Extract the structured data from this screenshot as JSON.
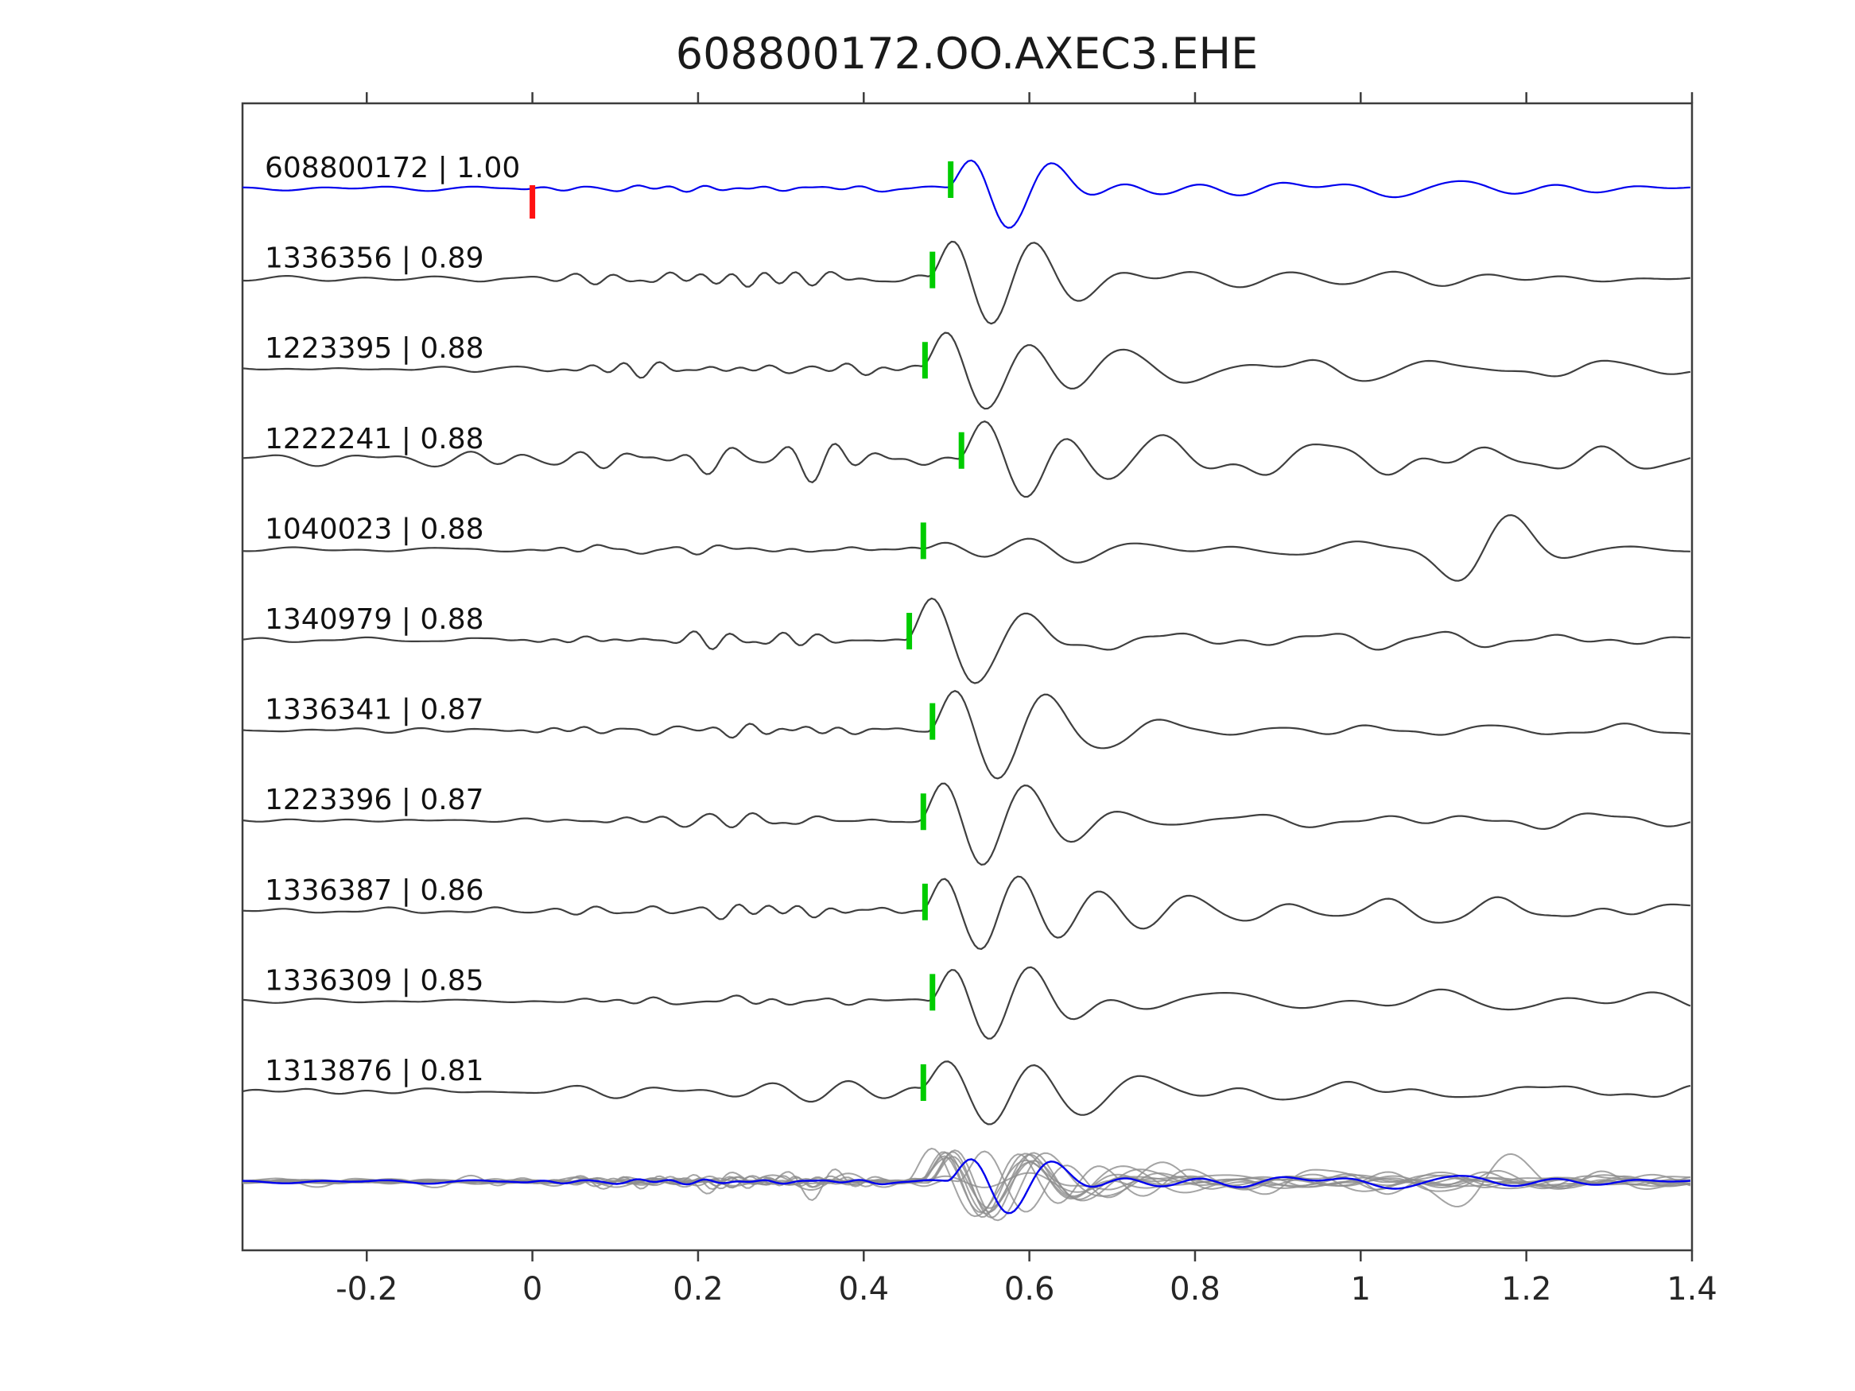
{
  "chart_data": {
    "type": "line",
    "title": "608800172.OO.AXEC3.EHE",
    "xlabel": "",
    "ylabel": "",
    "grid": false,
    "legend": "none",
    "xlim": [
      -0.35,
      1.4
    ],
    "x_ticks": [
      -0.2,
      0,
      0.2,
      0.4,
      0.6,
      0.8,
      1,
      1.2,
      1.4
    ],
    "x_tick_labels": [
      "-0.2",
      "0",
      "0.2",
      "0.4",
      "0.6",
      "0.8",
      "1",
      "1.2",
      "1.4"
    ],
    "colors": {
      "reference_trace": "#0000ee",
      "match_trace": "#3f3f3f",
      "pick_marker": "#00cc00",
      "origin_marker": "#ff1111",
      "overlay_trace": "#8d8d8d",
      "axis": "#3c3c3c",
      "text": "#262626"
    },
    "traces": [
      {
        "id": "608800172",
        "cc": 1.0,
        "label": "608800172 | 1.00",
        "pick_time": 0.505,
        "origin_time": 0.0,
        "role": "reference"
      },
      {
        "id": "1336356",
        "cc": 0.89,
        "label": "1336356 | 0.89",
        "pick_time": 0.483,
        "role": "match"
      },
      {
        "id": "1223395",
        "cc": 0.88,
        "label": "1223395 | 0.88",
        "pick_time": 0.474,
        "role": "match"
      },
      {
        "id": "1222241",
        "cc": 0.88,
        "label": "1222241 | 0.88",
        "pick_time": 0.518,
        "role": "match"
      },
      {
        "id": "1040023",
        "cc": 0.88,
        "label": "1040023 | 0.88",
        "pick_time": 0.472,
        "role": "match"
      },
      {
        "id": "1340979",
        "cc": 0.88,
        "label": "1340979 | 0.88",
        "pick_time": 0.455,
        "role": "match"
      },
      {
        "id": "1336341",
        "cc": 0.87,
        "label": "1336341 | 0.87",
        "pick_time": 0.483,
        "role": "match"
      },
      {
        "id": "1223396",
        "cc": 0.87,
        "label": "1223396 | 0.87",
        "pick_time": 0.472,
        "role": "match"
      },
      {
        "id": "1336387",
        "cc": 0.86,
        "label": "1336387 | 0.86",
        "pick_time": 0.474,
        "role": "match"
      },
      {
        "id": "1336309",
        "cc": 0.85,
        "label": "1336309 | 0.85",
        "pick_time": 0.483,
        "role": "match"
      },
      {
        "id": "1313876",
        "cc": 0.81,
        "label": "1313876 | 0.81",
        "pick_time": 0.472,
        "role": "match"
      },
      {
        "id": "stack-overlay",
        "label": "",
        "role": "overlay"
      }
    ],
    "waveform_params": [
      {
        "seed": 101,
        "base": 3,
        "ripple": 6,
        "arrival": 46,
        "coda": 22
      },
      {
        "seed": 202,
        "base": 3,
        "ripple": 10,
        "arrival": 60,
        "coda": 20
      },
      {
        "seed": 303,
        "base": 3,
        "ripple": 9,
        "arrival": 56,
        "coda": 16
      },
      {
        "seed": 404,
        "base": 9,
        "ripple": 26,
        "arrival": 55,
        "coda": 24,
        "ripple_band": [
          12,
          26
        ]
      },
      {
        "seed": 505,
        "base": 3,
        "ripple": 6,
        "arrival": 16,
        "coda": 14,
        "late": [
          1.15,
          50
        ]
      },
      {
        "seed": 606,
        "base": 3,
        "ripple": 10,
        "arrival": 56,
        "coda": 24
      },
      {
        "seed": 707,
        "base": 3,
        "ripple": 10,
        "arrival": 54,
        "coda": 26
      },
      {
        "seed": 808,
        "base": 3,
        "ripple": 9,
        "arrival": 56,
        "coda": 20
      },
      {
        "seed": 909,
        "base": 4,
        "ripple": 11,
        "arrival": 56,
        "coda": 20
      },
      {
        "seed": 1010,
        "base": 3,
        "ripple": 8,
        "arrival": 54,
        "coda": 18
      },
      {
        "seed": 1111,
        "base": 4,
        "ripple": 12,
        "arrival": 50,
        "coda": 18,
        "ripple_band": [
          8,
          18
        ]
      }
    ],
    "overlay_scale": 0.8
  }
}
